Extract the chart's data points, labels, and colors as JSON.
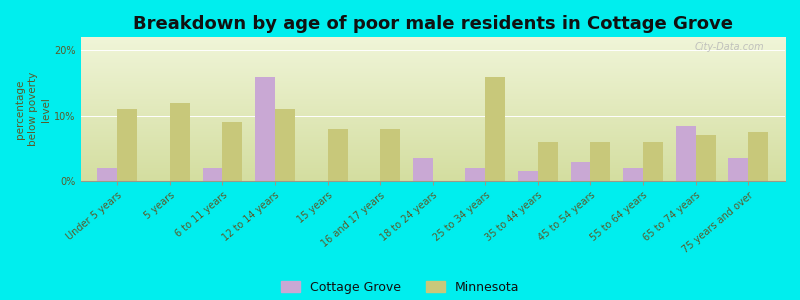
{
  "title": "Breakdown by age of poor male residents in Cottage Grove",
  "categories": [
    "Under 5 years",
    "5 years",
    "6 to 11 years",
    "12 to 14 years",
    "15 years",
    "16 and 17 years",
    "18 to 24 years",
    "25 to 34 years",
    "35 to 44 years",
    "45 to 54 years",
    "55 to 64 years",
    "65 to 74 years",
    "75 years and over"
  ],
  "cottage_grove": [
    2.0,
    0.0,
    2.0,
    16.0,
    0.0,
    0.0,
    3.5,
    2.0,
    1.5,
    3.0,
    2.0,
    8.5,
    3.5
  ],
  "minnesota": [
    11.0,
    12.0,
    9.0,
    11.0,
    8.0,
    8.0,
    0.0,
    16.0,
    6.0,
    6.0,
    6.0,
    7.0,
    7.5
  ],
  "cottage_grove_color": "#c9a8d4",
  "minnesota_color": "#c8c87a",
  "background_top": "#d4dea0",
  "background_bottom": "#f0f5d8",
  "bg_outer": "#00eeee",
  "ylabel": "percentage\nbelow poverty\nlevel",
  "ylim": [
    0,
    22
  ],
  "yticks": [
    0,
    10,
    20
  ],
  "ytick_labels": [
    "0%",
    "10%",
    "20%"
  ],
  "bar_width": 0.38,
  "title_fontsize": 13,
  "axis_label_fontsize": 7.5,
  "tick_fontsize": 7,
  "legend_fontsize": 9
}
